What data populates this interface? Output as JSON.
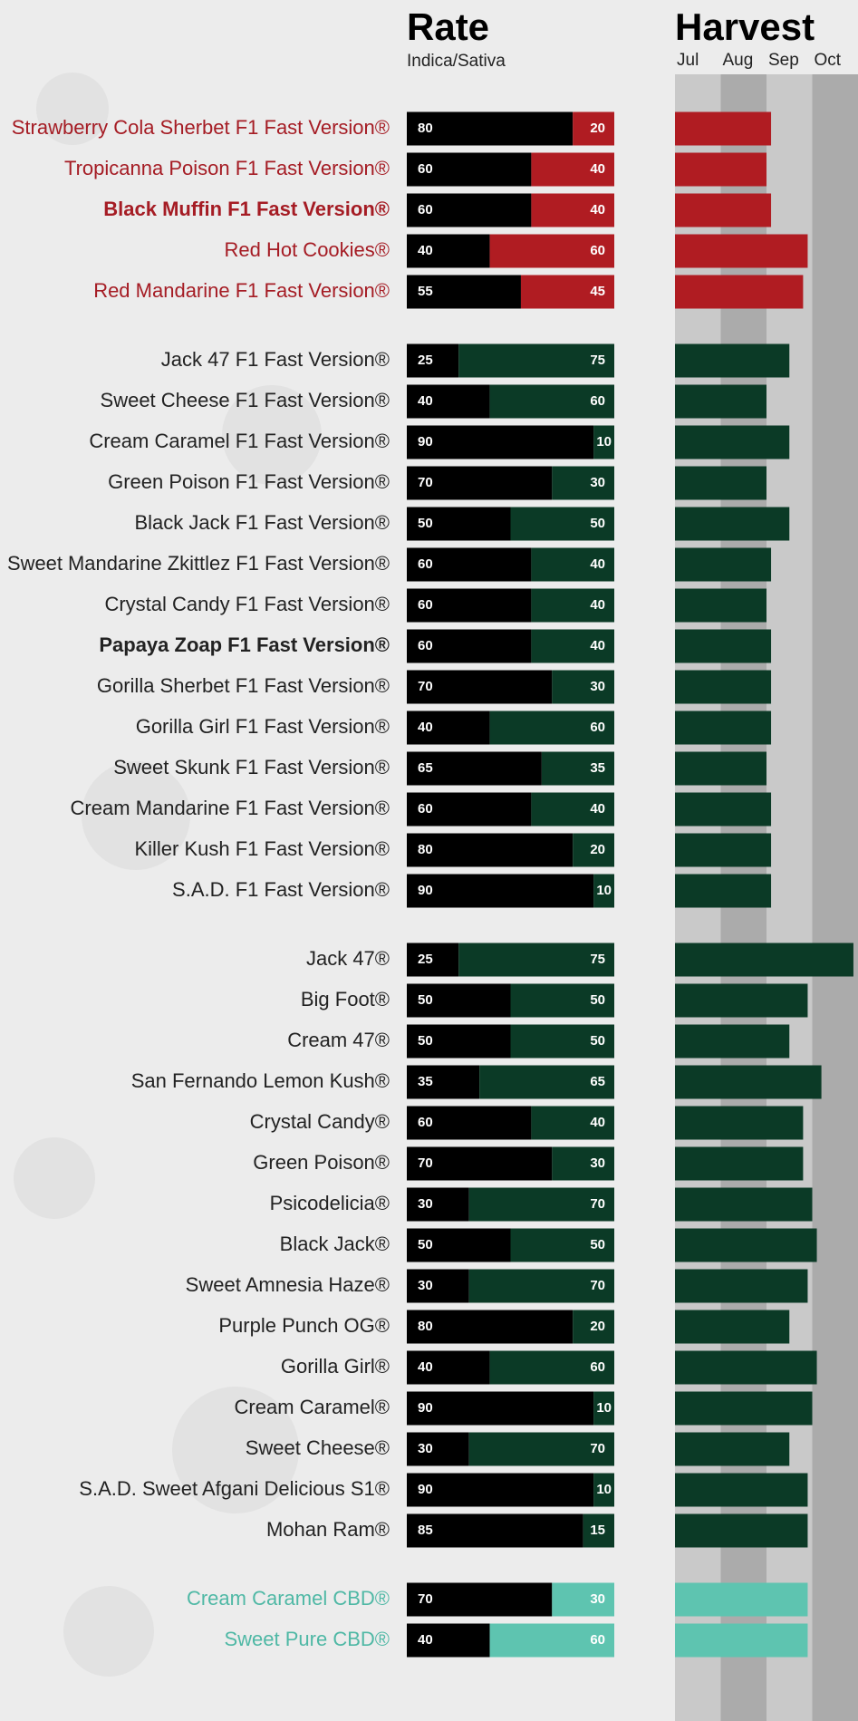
{
  "chart_data": {
    "type": "bar",
    "title": "Rate",
    "subtitle": "Indica/Sativa",
    "harvest_title": "Harvest",
    "months": [
      "Jul",
      "Aug",
      "Sep",
      "Oct"
    ],
    "xlim": [
      0,
      100
    ],
    "harvest_lim": [
      0,
      4
    ],
    "indica_color": "#000000",
    "groups": [
      {
        "color": "#b01c22",
        "label_color": "#a51c24",
        "items": [
          {
            "name": "Strawberry Cola Sherbet F1 Fast Version®",
            "indica": 80,
            "sativa": 20,
            "harvest": 2.1
          },
          {
            "name": "Tropicanna Poison F1 Fast Version®",
            "indica": 60,
            "sativa": 40,
            "harvest": 2.0
          },
          {
            "name": "Black Muffin F1 Fast Version®",
            "indica": 60,
            "sativa": 40,
            "harvest": 2.1,
            "bold": true
          },
          {
            "name": "Red Hot Cookies®",
            "indica": 40,
            "sativa": 60,
            "harvest": 2.9
          },
          {
            "name": "Red Mandarine F1 Fast Version®",
            "indica": 55,
            "sativa": 45,
            "harvest": 2.8
          }
        ]
      },
      {
        "color": "#0b3a26",
        "label_color": "#222222",
        "items": [
          {
            "name": "Jack 47 F1 Fast Version®",
            "indica": 25,
            "sativa": 75,
            "harvest": 2.5
          },
          {
            "name": "Sweet Cheese F1 Fast Version®",
            "indica": 40,
            "sativa": 60,
            "harvest": 2.0
          },
          {
            "name": "Cream Caramel F1 Fast Version®",
            "indica": 90,
            "sativa": 10,
            "harvest": 2.5
          },
          {
            "name": "Green Poison F1 Fast Version®",
            "indica": 70,
            "sativa": 30,
            "harvest": 2.0
          },
          {
            "name": "Black Jack F1 Fast Version®",
            "indica": 50,
            "sativa": 50,
            "harvest": 2.5
          },
          {
            "name": "Sweet Mandarine Zkittlez F1 Fast Version®",
            "indica": 60,
            "sativa": 40,
            "harvest": 2.1
          },
          {
            "name": "Crystal Candy F1 Fast Version®",
            "indica": 60,
            "sativa": 40,
            "harvest": 2.0
          },
          {
            "name": "Papaya Zoap F1 Fast Version®",
            "indica": 60,
            "sativa": 40,
            "harvest": 2.1,
            "bold": true
          },
          {
            "name": "Gorilla Sherbet F1 Fast Version®",
            "indica": 70,
            "sativa": 30,
            "harvest": 2.1
          },
          {
            "name": "Gorilla Girl F1 Fast Version®",
            "indica": 40,
            "sativa": 60,
            "harvest": 2.1
          },
          {
            "name": "Sweet Skunk F1 Fast Version®",
            "indica": 65,
            "sativa": 35,
            "harvest": 2.0
          },
          {
            "name": "Cream Mandarine F1 Fast Version®",
            "indica": 60,
            "sativa": 40,
            "harvest": 2.1
          },
          {
            "name": "Killer Kush F1 Fast Version®",
            "indica": 80,
            "sativa": 20,
            "harvest": 2.1
          },
          {
            "name": "S.A.D. F1 Fast Version®",
            "indica": 90,
            "sativa": 10,
            "harvest": 2.1
          }
        ]
      },
      {
        "color": "#0b3a26",
        "label_color": "#222222",
        "items": [
          {
            "name": "Jack 47®",
            "indica": 25,
            "sativa": 75,
            "harvest": 3.9
          },
          {
            "name": "Big Foot®",
            "indica": 50,
            "sativa": 50,
            "harvest": 2.9
          },
          {
            "name": "Cream 47®",
            "indica": 50,
            "sativa": 50,
            "harvest": 2.5
          },
          {
            "name": "San Fernando Lemon Kush®",
            "indica": 35,
            "sativa": 65,
            "harvest": 3.2
          },
          {
            "name": "Crystal Candy®",
            "indica": 60,
            "sativa": 40,
            "harvest": 2.8
          },
          {
            "name": "Green Poison®",
            "indica": 70,
            "sativa": 30,
            "harvest": 2.8
          },
          {
            "name": "Psicodelicia®",
            "indica": 30,
            "sativa": 70,
            "harvest": 3.0
          },
          {
            "name": "Black Jack®",
            "indica": 50,
            "sativa": 50,
            "harvest": 3.1
          },
          {
            "name": "Sweet Amnesia Haze®",
            "indica": 30,
            "sativa": 70,
            "harvest": 2.9
          },
          {
            "name": "Purple Punch OG®",
            "indica": 80,
            "sativa": 20,
            "harvest": 2.5
          },
          {
            "name": "Gorilla Girl®",
            "indica": 40,
            "sativa": 60,
            "harvest": 3.1
          },
          {
            "name": "Cream Caramel®",
            "indica": 90,
            "sativa": 10,
            "harvest": 3.0
          },
          {
            "name": "Sweet Cheese®",
            "indica": 30,
            "sativa": 70,
            "harvest": 2.5
          },
          {
            "name": "S.A.D. Sweet Afgani Delicious S1®",
            "indica": 90,
            "sativa": 10,
            "harvest": 2.9
          },
          {
            "name": "Mohan Ram®",
            "indica": 85,
            "sativa": 15,
            "harvest": 2.9
          }
        ]
      },
      {
        "color": "#5ec4b0",
        "label_color": "#4fb8a5",
        "items": [
          {
            "name": "Cream Caramel CBD®",
            "indica": 70,
            "sativa": 30,
            "harvest": 2.9
          },
          {
            "name": "Sweet Pure CBD®",
            "indica": 40,
            "sativa": 60,
            "harvest": 2.9
          }
        ]
      }
    ]
  }
}
